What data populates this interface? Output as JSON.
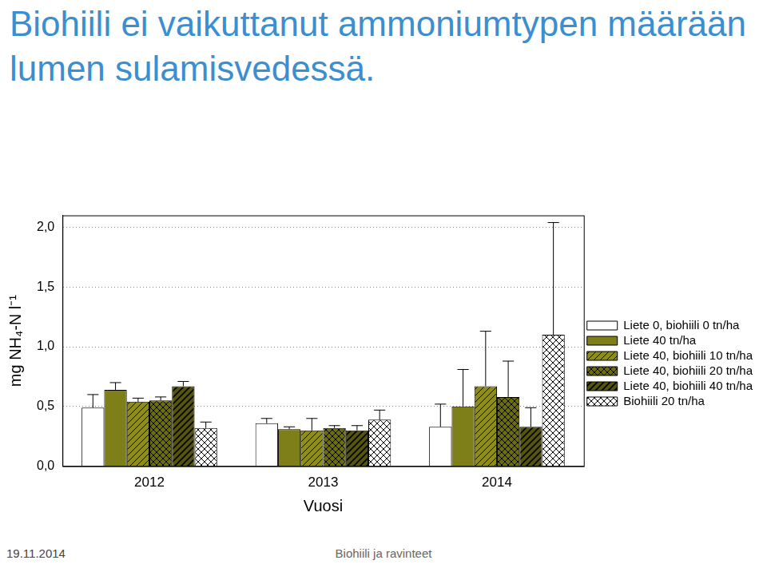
{
  "chart_data": {
    "type": "bar",
    "title": "Biohiili ei vaikuttanut ammoniumtypen määrään lumen sulamisvedessä.",
    "x_label": "Vuosi",
    "y_label": "mg NH₄-N l⁻¹",
    "categories": [
      "2012",
      "2013",
      "2014"
    ],
    "series": [
      {
        "name": "Liete 0, biohiili 0 tn/ha",
        "color": "#ffffff",
        "values": [
          0.49,
          0.36,
          0.33
        ],
        "error": [
          0.11,
          0.04,
          0.19
        ]
      },
      {
        "name": "Liete 40 tn/ha",
        "color": "#7f7f1a",
        "values": [
          0.64,
          0.31,
          0.5
        ],
        "error": [
          0.06,
          0.02,
          0.31
        ]
      },
      {
        "name": "Liete 40, biohiili 10 tn/ha",
        "color": "#8c8c22",
        "values": [
          0.54,
          0.3,
          0.67
        ],
        "error": [
          0.03,
          0.1,
          0.46
        ]
      },
      {
        "name": "Liete 40, biohiili 20 tn/ha",
        "color": "#6b6b10",
        "values": [
          0.55,
          0.32,
          0.58
        ],
        "error": [
          0.03,
          0.02,
          0.3
        ]
      },
      {
        "name": "Liete 40, biohiili 40 tn/ha",
        "color": "#55550a",
        "values": [
          0.67,
          0.3,
          0.33
        ],
        "error": [
          0.04,
          0.04,
          0.16
        ]
      },
      {
        "name": "Biohiili 20 tn/ha",
        "color": "#ffffff",
        "values": [
          0.32,
          0.39,
          1.1
        ],
        "error": [
          0.05,
          0.08,
          0.94
        ]
      }
    ],
    "ylim": [
      0,
      2.1
    ],
    "yticks": [
      {
        "value": 0,
        "label": "0,0"
      },
      {
        "value": 0.5,
        "label": "0,5"
      },
      {
        "value": 1,
        "label": "1,0"
      },
      {
        "value": 1.5,
        "label": "1,5"
      },
      {
        "value": 2,
        "label": "2,0"
      }
    ],
    "grid": true,
    "legend": "right"
  },
  "footer": {
    "left": "19.11.2014",
    "center": "Biohiili ja ravinteet"
  }
}
